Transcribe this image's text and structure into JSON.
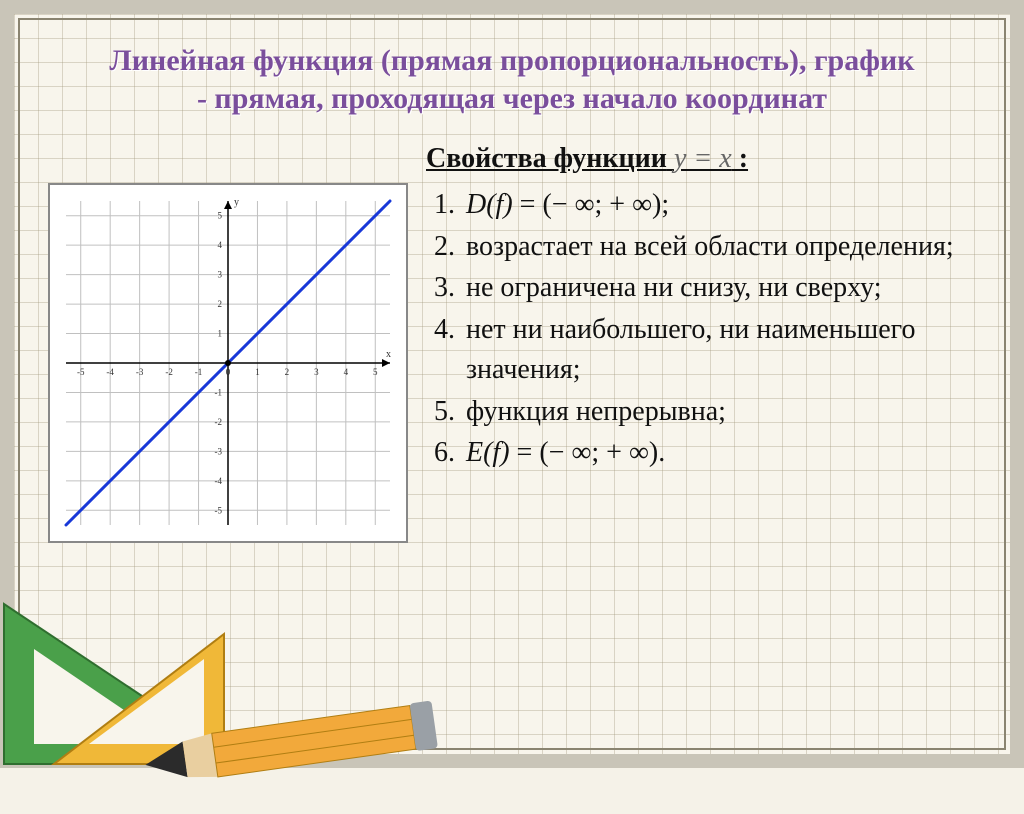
{
  "title": "Линейная функция (прямая пропорциональность), график - прямая, проходящая через начало координат",
  "properties_heading": "Свойства функции",
  "properties_fn": "y = x",
  "properties_colon": " :",
  "properties": [
    "D(f) = (− ∞; + ∞);",
    "возрастает на всей области определения;",
    "не ограничена ни снизу, ни сверху;",
    "нет ни наибольшего, ни наименьшего значения;",
    "функция непрерывна;",
    "E(f) = (− ∞; + ∞)."
  ],
  "chart": {
    "type": "line",
    "xlim": [
      -5.5,
      5.5
    ],
    "ylim": [
      -5.5,
      5.5
    ],
    "xtick_step": 1,
    "ytick_step": 1,
    "x_ticks": [
      -5,
      -4,
      -3,
      -2,
      -1,
      0,
      1,
      2,
      3,
      4,
      5
    ],
    "y_ticks": [
      -5,
      -4,
      -3,
      -2,
      -1,
      1,
      2,
      3,
      4,
      5
    ],
    "line_points": [
      [
        -5.5,
        -5.5
      ],
      [
        5.5,
        5.5
      ]
    ],
    "line_color": "#1838d8",
    "line_width": 3,
    "axis_color": "#000000",
    "grid_color": "#c0c0c0",
    "background_color": "#ffffff",
    "tick_fontsize": 9,
    "axis_label_x": "x",
    "axis_label_y": "y",
    "origin_dot_color": "#000000"
  },
  "colors": {
    "title_color": "#7a4e9c",
    "page_bg": "#f8f5ec",
    "frame_border": "#c9c5b8",
    "triangle_deg90": "#4aa04a",
    "triangle_deg45": "#f0b838",
    "pencil_body": "#f2a93b",
    "pencil_lead": "#2b2b2b",
    "pencil_ferrule": "#9aa0a6"
  }
}
